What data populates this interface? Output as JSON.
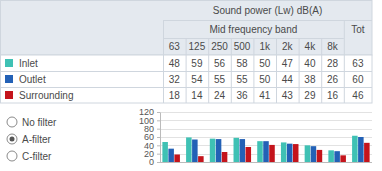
{
  "chart_data": {
    "type": "bar",
    "title": "Sound power (Lw) dB(A)",
    "subtitle": "Mid frequency band",
    "categories": [
      "63",
      "125",
      "250",
      "500",
      "1k",
      "2k",
      "4k",
      "8k",
      "Tot"
    ],
    "series": [
      {
        "name": "Inlet",
        "color": "#3fc1b4",
        "values": [
          48,
          59,
          56,
          58,
          50,
          47,
          40,
          28,
          63
        ]
      },
      {
        "name": "Outlet",
        "color": "#2361b6",
        "values": [
          32,
          54,
          55,
          55,
          50,
          44,
          38,
          26,
          60
        ]
      },
      {
        "name": "Surrounding",
        "color": "#c4141c",
        "values": [
          18,
          14,
          24,
          36,
          41,
          43,
          29,
          16,
          46
        ]
      }
    ],
    "ylim": [
      0,
      120
    ],
    "yticks": [
      0,
      20,
      40,
      60,
      80,
      100,
      120
    ],
    "grid": true,
    "tick_labels": "y"
  },
  "filters": {
    "options": [
      "No filter",
      "A-filter",
      "C-filter"
    ],
    "selected": "A-filter"
  }
}
